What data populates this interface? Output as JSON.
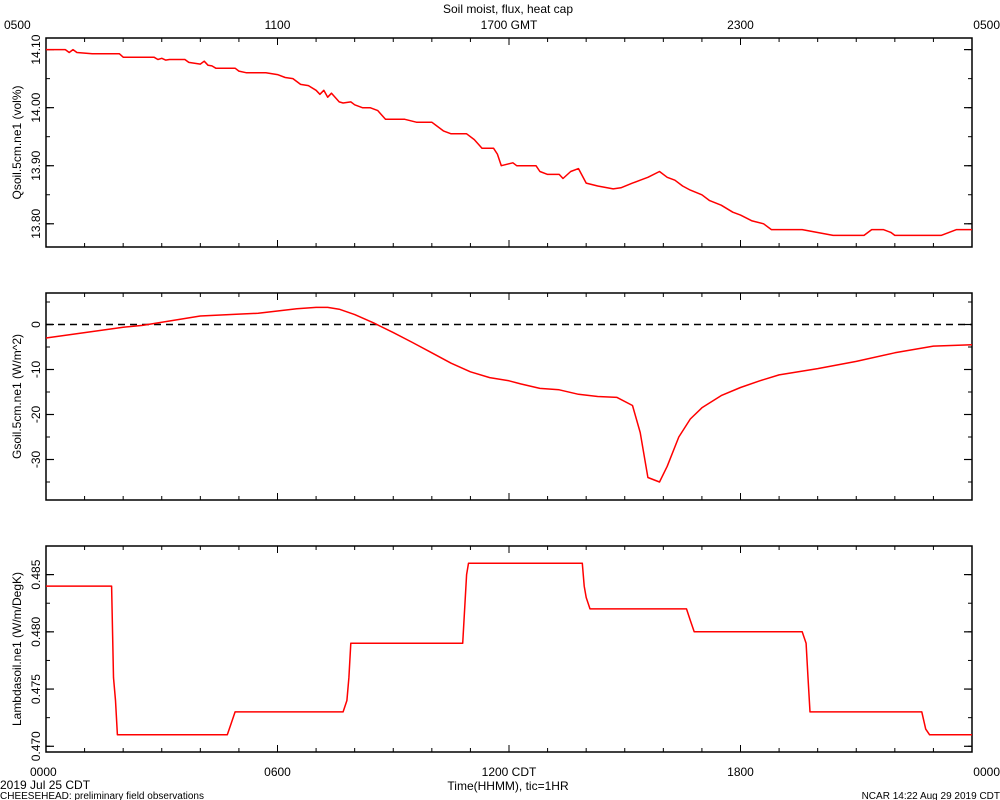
{
  "title": "Soil moist, flux, heat cap",
  "footer": {
    "date": "2019 Jul 25 CDT",
    "project": "CHEESEHEAD: preliminary field observations",
    "stamp": "NCAR 14:22 Aug 29 2019 CDT"
  },
  "colors": {
    "series": "#ff0000",
    "axis": "#000000",
    "zero_line": "#000000"
  },
  "chart_data": [
    {
      "type": "line",
      "ylabel": "Qsoil.5cm.ne1 (vol%)",
      "ylim": [
        13.76,
        14.12
      ],
      "yticks": [
        13.8,
        13.9,
        14.0,
        14.1
      ],
      "ytick_labels": [
        "13.80",
        "13.90",
        "14.00",
        "14.10"
      ],
      "x": [
        0.0,
        0.5,
        0.6,
        0.7,
        0.8,
        1.2,
        1.9,
        2.0,
        2.8,
        2.9,
        3.0,
        3.1,
        3.2,
        3.6,
        3.7,
        4.0,
        4.1,
        4.2,
        4.3,
        4.4,
        4.9,
        5.0,
        5.2,
        5.4,
        5.7,
        6.0,
        6.2,
        6.4,
        6.6,
        6.8,
        7.0,
        7.1,
        7.2,
        7.3,
        7.4,
        7.6,
        7.7,
        7.9,
        8.0,
        8.2,
        8.4,
        8.6,
        8.8,
        9.3,
        9.6,
        10.0,
        10.1,
        10.3,
        10.5,
        10.9,
        11.1,
        11.3,
        11.6,
        11.7,
        11.8,
        12.1,
        12.2,
        12.7,
        12.8,
        13.0,
        13.3,
        13.4,
        13.6,
        13.8,
        14.0,
        14.3,
        14.7,
        14.9,
        15.2,
        15.4,
        15.6,
        15.9,
        16.1,
        16.3,
        16.5,
        16.7,
        17.0,
        17.2,
        17.5,
        17.8,
        18.0,
        18.3,
        18.6,
        18.8,
        19.1,
        19.6,
        20.4,
        20.6,
        21.2,
        21.4,
        21.7,
        21.9,
        22.0,
        22.4,
        23.0,
        23.2,
        23.6,
        24.0
      ],
      "values": [
        14.1,
        14.1,
        14.095,
        14.1,
        14.095,
        14.093,
        14.093,
        14.087,
        14.087,
        14.083,
        14.085,
        14.082,
        14.083,
        14.083,
        14.078,
        14.075,
        14.08,
        14.073,
        14.072,
        14.068,
        14.068,
        14.063,
        14.06,
        14.06,
        14.06,
        14.057,
        14.052,
        14.05,
        14.04,
        14.038,
        14.03,
        14.023,
        14.03,
        14.018,
        14.025,
        14.01,
        14.008,
        14.01,
        14.005,
        14.0,
        14.0,
        13.995,
        13.98,
        13.98,
        13.975,
        13.975,
        13.97,
        13.96,
        13.955,
        13.955,
        13.945,
        13.93,
        13.93,
        13.92,
        13.9,
        13.905,
        13.9,
        13.9,
        13.89,
        13.885,
        13.885,
        13.878,
        13.89,
        13.895,
        13.87,
        13.865,
        13.86,
        13.862,
        13.87,
        13.875,
        13.88,
        13.89,
        13.88,
        13.875,
        13.865,
        13.858,
        13.85,
        13.84,
        13.832,
        13.82,
        13.815,
        13.805,
        13.8,
        13.79,
        13.79,
        13.79,
        13.78,
        13.78,
        13.78,
        13.79,
        13.79,
        13.785,
        13.78,
        13.78,
        13.78,
        13.78,
        13.79,
        13.79
      ]
    },
    {
      "type": "line",
      "ylabel": "Gsoil.5cm.ne1 (W/m^2)",
      "ylim": [
        -39,
        7
      ],
      "yticks": [
        -30,
        -20,
        -10,
        0
      ],
      "ytick_labels": [
        "-30",
        "-20",
        "-10",
        "0"
      ],
      "zero_line": true,
      "x": [
        0.0,
        1.0,
        2.0,
        2.5,
        3.0,
        4.0,
        5.0,
        5.5,
        6.0,
        6.5,
        7.0,
        7.3,
        7.6,
        8.0,
        8.5,
        9.0,
        9.5,
        10.0,
        10.5,
        11.0,
        11.5,
        12.0,
        12.3,
        12.8,
        13.3,
        13.8,
        14.3,
        14.8,
        15.2,
        15.4,
        15.6,
        15.9,
        16.1,
        16.4,
        16.7,
        17.0,
        17.5,
        18.0,
        18.5,
        19.0,
        20.0,
        21.0,
        22.0,
        23.0,
        24.0
      ],
      "values": [
        -3.0,
        -1.8,
        -0.6,
        -0.2,
        0.5,
        1.9,
        2.3,
        2.5,
        3.0,
        3.5,
        3.8,
        3.8,
        3.4,
        2.2,
        0.3,
        -1.8,
        -4.0,
        -6.3,
        -8.6,
        -10.5,
        -11.8,
        -12.5,
        -13.2,
        -14.2,
        -14.5,
        -15.5,
        -16.0,
        -16.2,
        -18.0,
        -24.0,
        -34.0,
        -35.0,
        -31.5,
        -25.0,
        -21.0,
        -18.5,
        -15.8,
        -14.0,
        -12.5,
        -11.2,
        -9.8,
        -8.2,
        -6.3,
        -4.8,
        -4.5
      ]
    },
    {
      "type": "line",
      "ylabel": "Lambdasoil.ne1 (W/m/DegK)",
      "ylim": [
        0.4695,
        0.4875
      ],
      "yticks": [
        0.47,
        0.475,
        0.48,
        0.485
      ],
      "ytick_labels": [
        "0.470",
        "0.475",
        "0.480",
        "0.485"
      ],
      "x": [
        0.0,
        1.7,
        1.75,
        1.8,
        1.85,
        4.7,
        4.8,
        4.9,
        7.7,
        7.8,
        7.85,
        7.9,
        10.8,
        10.9,
        10.95,
        11.0,
        13.9,
        13.95,
        14.0,
        14.1,
        16.6,
        16.7,
        16.8,
        16.9,
        19.6,
        19.7,
        19.75,
        19.8,
        22.7,
        22.8,
        22.9,
        24.0
      ],
      "values": [
        0.484,
        0.484,
        0.476,
        0.474,
        0.471,
        0.471,
        0.472,
        0.473,
        0.473,
        0.474,
        0.476,
        0.479,
        0.479,
        0.485,
        0.486,
        0.486,
        0.486,
        0.484,
        0.483,
        0.482,
        0.482,
        0.481,
        0.48,
        0.48,
        0.48,
        0.479,
        0.476,
        0.473,
        0.473,
        0.4715,
        0.471,
        0.471
      ]
    }
  ],
  "x_axis": {
    "xlim": [
      0,
      24
    ],
    "top_ticks": [
      0,
      6,
      12,
      18,
      24
    ],
    "top_tick_labels": [
      "0500",
      "1100",
      "1700 GMT",
      "2300",
      "0500"
    ],
    "bottom_ticks": [
      0,
      6,
      12,
      18,
      24
    ],
    "bottom_tick_labels": [
      "0000",
      "0600",
      "1200 CDT",
      "1800",
      "0000"
    ],
    "xlabel": "Time(HHMM), tic=1HR"
  }
}
